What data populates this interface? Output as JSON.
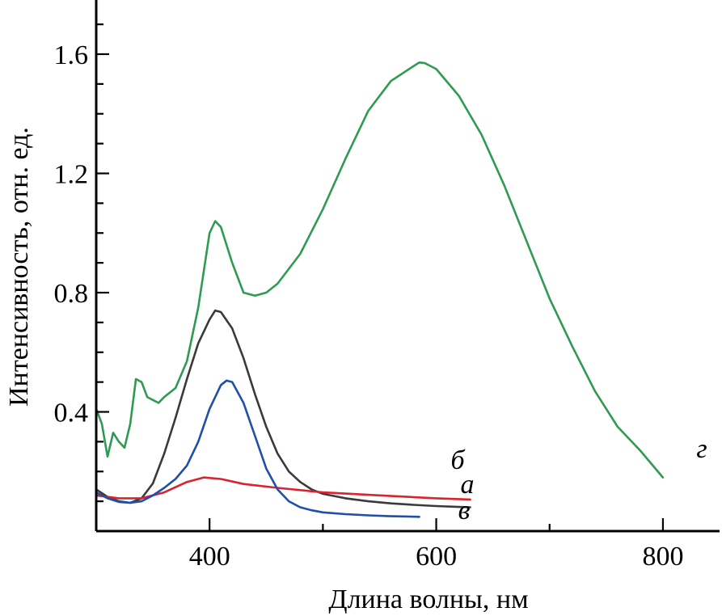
{
  "chart_data": {
    "type": "line",
    "title": "",
    "xlabel": "Длина волны, нм",
    "ylabel": "Интенсивность, отн. ед.",
    "xlim": [
      300,
      830
    ],
    "ylim": [
      0.0,
      1.76
    ],
    "x_major_ticks": [
      400,
      600,
      800
    ],
    "x_minor_ticks": [
      500,
      700
    ],
    "x_tick_labels": [
      "400",
      "600",
      "800"
    ],
    "y_major_ticks": [
      0.4,
      0.8,
      1.2,
      1.6
    ],
    "y_minor_ticks": [
      0.1,
      0.2,
      0.3,
      0.5,
      0.6,
      0.7,
      0.9,
      1.0,
      1.1,
      1.3,
      1.4,
      1.5,
      1.7
    ],
    "y_tick_labels": [
      "0.4",
      "0.8",
      "1.2",
      "1.6"
    ],
    "grid": false,
    "series": [
      {
        "name": "а",
        "label": "а",
        "color": "#3a3a3a",
        "x": [
          300,
          310,
          320,
          330,
          340,
          350,
          360,
          370,
          380,
          390,
          400,
          405,
          410,
          420,
          430,
          440,
          450,
          460,
          470,
          480,
          490,
          500,
          520,
          540,
          560,
          580,
          600,
          620,
          630
        ],
        "y": [
          0.14,
          0.115,
          0.1,
          0.095,
          0.11,
          0.16,
          0.26,
          0.38,
          0.51,
          0.63,
          0.71,
          0.74,
          0.735,
          0.68,
          0.58,
          0.46,
          0.35,
          0.26,
          0.2,
          0.165,
          0.14,
          0.125,
          0.11,
          0.1,
          0.093,
          0.088,
          0.084,
          0.081,
          0.08
        ]
      },
      {
        "name": "б",
        "label": "б",
        "color": "#d9232e",
        "x": [
          300,
          320,
          340,
          360,
          380,
          395,
          410,
          430,
          460,
          500,
          550,
          600,
          630
        ],
        "y": [
          0.12,
          0.11,
          0.11,
          0.13,
          0.165,
          0.18,
          0.175,
          0.158,
          0.145,
          0.13,
          0.12,
          0.11,
          0.106
        ]
      },
      {
        "name": "в",
        "label": "в",
        "color": "#1f4fa8",
        "x": [
          300,
          310,
          320,
          330,
          340,
          350,
          360,
          370,
          380,
          390,
          400,
          410,
          415,
          420,
          430,
          440,
          450,
          460,
          470,
          480,
          490,
          500,
          520,
          540,
          560,
          585
        ],
        "y": [
          0.13,
          0.11,
          0.098,
          0.095,
          0.1,
          0.12,
          0.145,
          0.175,
          0.22,
          0.3,
          0.41,
          0.49,
          0.505,
          0.5,
          0.43,
          0.32,
          0.21,
          0.14,
          0.1,
          0.08,
          0.07,
          0.063,
          0.057,
          0.053,
          0.05,
          0.048
        ]
      },
      {
        "name": "г",
        "label": "г",
        "color": "#2e9a52",
        "x": [
          300,
          305,
          310,
          315,
          320,
          325,
          330,
          335,
          340,
          345,
          350,
          355,
          360,
          370,
          380,
          390,
          400,
          405,
          410,
          420,
          430,
          440,
          450,
          460,
          480,
          500,
          520,
          540,
          560,
          580,
          585,
          590,
          600,
          620,
          640,
          660,
          680,
          700,
          720,
          740,
          760,
          780,
          800
        ],
        "y": [
          0.41,
          0.36,
          0.25,
          0.33,
          0.3,
          0.28,
          0.36,
          0.51,
          0.5,
          0.45,
          0.44,
          0.43,
          0.45,
          0.48,
          0.57,
          0.75,
          1.0,
          1.04,
          1.02,
          0.9,
          0.8,
          0.79,
          0.8,
          0.83,
          0.93,
          1.08,
          1.25,
          1.41,
          1.51,
          1.56,
          1.572,
          1.57,
          1.55,
          1.46,
          1.33,
          1.16,
          0.97,
          0.78,
          0.62,
          0.47,
          0.35,
          0.27,
          0.18
        ]
      }
    ]
  }
}
